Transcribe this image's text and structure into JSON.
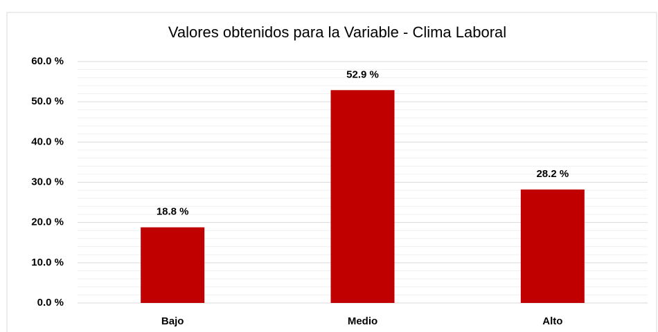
{
  "chart_data": {
    "type": "bar",
    "title": "Valores obtenidos para la Variable - Clima Laboral",
    "categories": [
      "Bajo",
      "Medio",
      "Alto"
    ],
    "values": [
      18.8,
      52.9,
      28.2
    ],
    "value_labels": [
      "18.8 %",
      "52.9 %",
      "28.2 %"
    ],
    "color": "#c00000",
    "ylim": [
      0,
      60
    ],
    "yticks": [
      {
        "value": 0,
        "label": "0.0 %"
      },
      {
        "value": 10,
        "label": "10.0 %"
      },
      {
        "value": 20,
        "label": "20.0 %"
      },
      {
        "value": 30,
        "label": "30.0 %"
      },
      {
        "value": 40,
        "label": "40.0 %"
      },
      {
        "value": 50,
        "label": "50.0 %"
      },
      {
        "value": 60,
        "label": "60.0 %"
      }
    ],
    "minor_yticks": [
      2,
      4,
      6,
      8,
      12,
      14,
      16,
      18,
      22,
      24,
      26,
      28,
      32,
      34,
      36,
      38,
      42,
      44,
      46,
      48,
      52,
      54,
      56,
      58
    ],
    "grid": true
  }
}
